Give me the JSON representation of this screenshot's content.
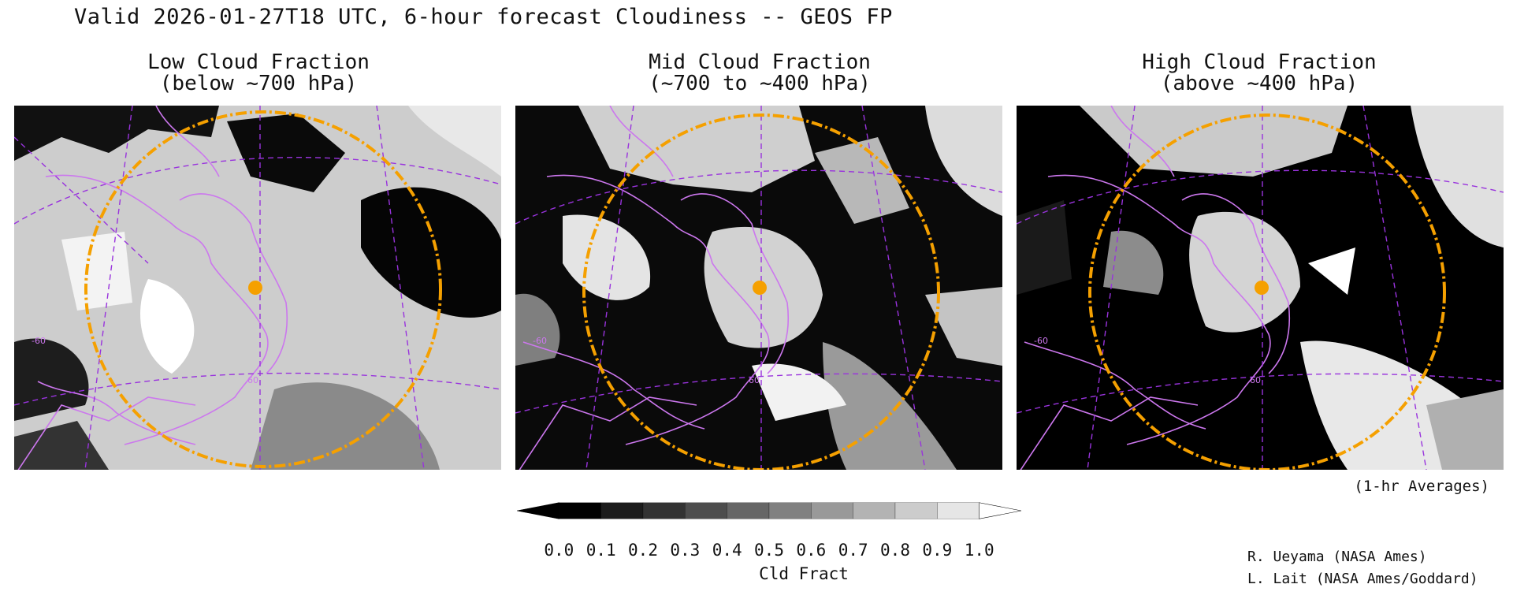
{
  "title": "Valid 2026-01-27T18 UTC, 6-hour forecast Cloudiness -- GEOS FP",
  "panels": [
    {
      "title_line1": "Low Cloud Fraction",
      "title_line2": "(below ~700 hPa)",
      "cloud_cover_summary": "mostly high low-cloud fraction over Hudson Bay and Atlantic"
    },
    {
      "title_line1": "Mid Cloud Fraction",
      "title_line2": "(~700 to ~400 hPa)",
      "cloud_cover_summary": "broken mid cloud bands over eastern Canada and Atlantic"
    },
    {
      "title_line1": "High Cloud Fraction",
      "title_line2": "(above ~400 hPa)",
      "cloud_cover_summary": "mostly clear with streaks over Quebec and the Atlantic"
    }
  ],
  "map_labels": {
    "lat_label": "60",
    "lon_label": "-60"
  },
  "colorbar": {
    "label": "Cld Fract",
    "ticks": [
      "0.0",
      "0.1",
      "0.2",
      "0.3",
      "0.4",
      "0.5",
      "0.6",
      "0.7",
      "0.8",
      "0.9",
      "1.0"
    ],
    "colors": [
      "#000000",
      "#1c1c1c",
      "#333333",
      "#4d4d4d",
      "#666666",
      "#808080",
      "#999999",
      "#b3b3b3",
      "#cccccc",
      "#e6e6e6",
      "#ffffff"
    ]
  },
  "averaging_note": "(1-hr Averages)",
  "credits": [
    "R. Ueyama (NASA Ames)",
    "L. Lait (NASA Ames/Goddard)"
  ],
  "colors": {
    "coastline": "#cc77ee",
    "grid": "#9933dd",
    "range_ring": "#f5a000",
    "site_marker": "#f5a000"
  }
}
